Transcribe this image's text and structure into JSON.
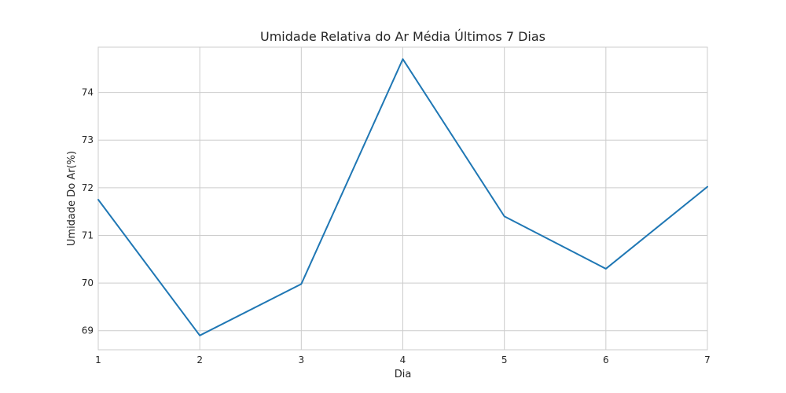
{
  "chart_data": {
    "type": "line",
    "title": "Umidade Relativa do Ar Média Últimos 7 Dias",
    "xlabel": "Dia",
    "ylabel": "Umidade Do Ar(%)",
    "x": [
      1,
      2,
      3,
      4,
      5,
      6,
      7
    ],
    "series": [
      {
        "values": [
          71.75,
          68.9,
          69.98,
          74.7,
          71.4,
          70.3,
          72.02
        ],
        "color": "#1f77b4"
      }
    ],
    "xlim": [
      1,
      7
    ],
    "ylim": [
      68.6,
      74.95
    ],
    "xticks": [
      1,
      2,
      3,
      4,
      5,
      6,
      7
    ],
    "xtick_labels": [
      "1",
      "2",
      "3",
      "4",
      "5",
      "6",
      "7"
    ],
    "yticks": [
      69,
      70,
      71,
      72,
      73,
      74
    ],
    "ytick_labels": [
      "69",
      "70",
      "71",
      "72",
      "73",
      "74"
    ],
    "grid": true,
    "legend": "none"
  }
}
